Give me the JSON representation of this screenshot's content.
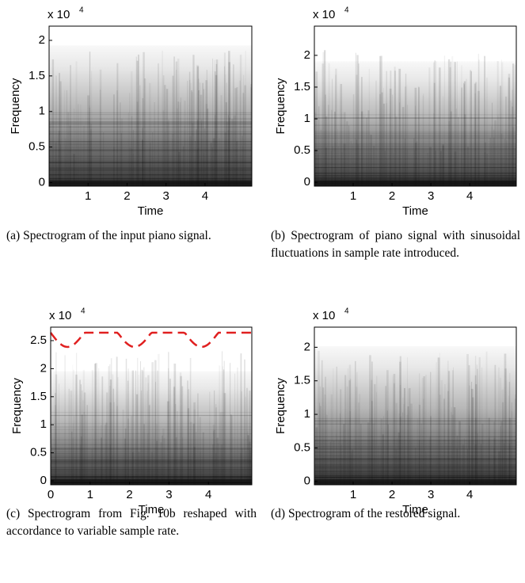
{
  "chart_data": [
    {
      "type": "spectrogram",
      "multiplier": "x 10",
      "exponent": "4",
      "xlabel": "Time",
      "ylabel": "Frequency",
      "xlim": [
        0,
        5.2
      ],
      "xticks": [
        1,
        2,
        3,
        4
      ],
      "ylim": [
        -0.05,
        2.2
      ],
      "yticks": [
        0,
        0.5,
        1,
        1.5,
        2
      ],
      "caption": "(a) Spectrogram of the input piano signal."
    },
    {
      "type": "spectrogram",
      "multiplier": "x 10",
      "exponent": "4",
      "xlabel": "Time",
      "ylabel": "Frequency",
      "xlim": [
        0,
        5.2
      ],
      "xticks": [
        1,
        2,
        3,
        4
      ],
      "ylim": [
        -0.06,
        2.46
      ],
      "yticks": [
        0,
        0.5,
        1,
        1.5,
        2
      ],
      "caption": "(b) Spectrogram of piano signal with sinusoidal fluctuations in sample rate introduced."
    },
    {
      "type": "spectrogram",
      "multiplier": "x 10",
      "exponent": "4",
      "xlabel": "Time",
      "ylabel": "Frequency",
      "xlim": [
        0,
        5.1
      ],
      "xticks": [
        0,
        1,
        2,
        3,
        4
      ],
      "ylim": [
        -0.07,
        2.74
      ],
      "yticks": [
        0,
        0.5,
        1,
        1.5,
        2,
        2.5
      ],
      "caption": "(c) Spectrogram from Fig. 10b reshaped with accordance to variable sample rate."
    },
    {
      "type": "spectrogram",
      "multiplier": "x 10",
      "exponent": "4",
      "xlabel": "Time",
      "ylabel": "Frequency",
      "xlim": [
        0,
        5.2
      ],
      "xticks": [
        1,
        2,
        3,
        4
      ],
      "ylim": [
        -0.05,
        2.3
      ],
      "yticks": [
        0,
        0.5,
        1,
        1.5,
        2
      ],
      "caption": "(d) Spectrogram of the restored signal."
    }
  ]
}
